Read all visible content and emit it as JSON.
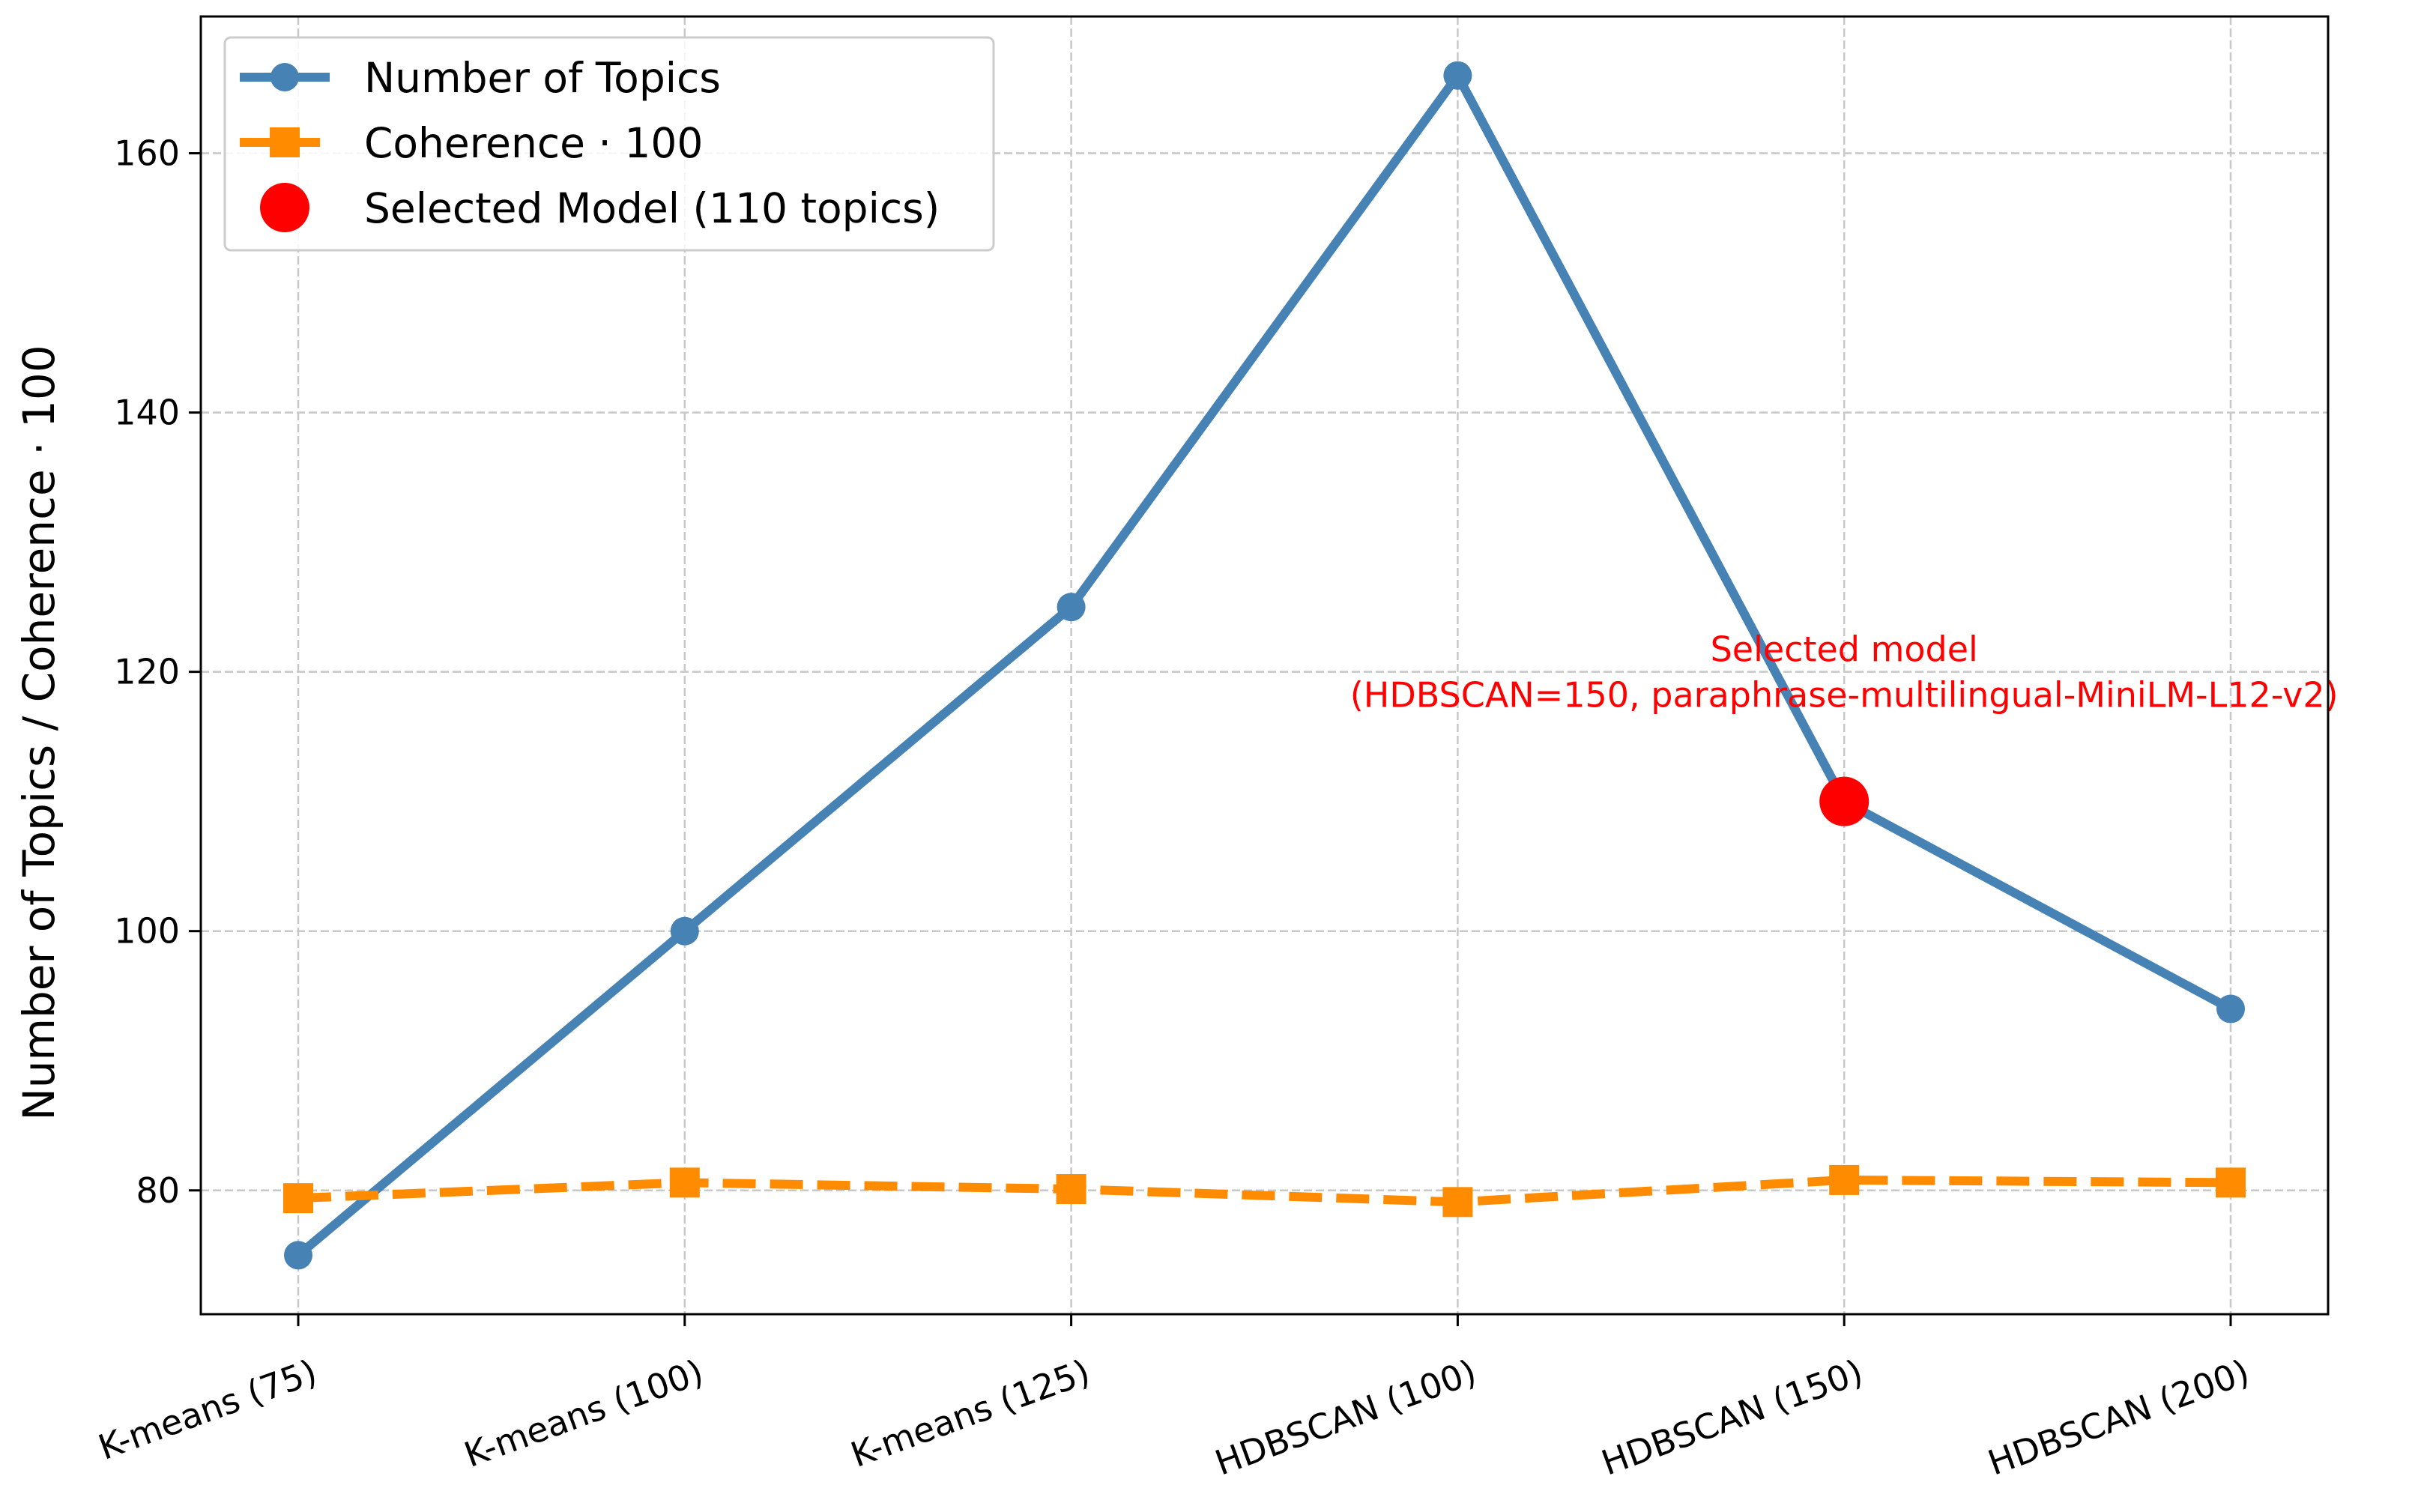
{
  "chart_data": {
    "type": "line",
    "categories": [
      "K-means (75)",
      "K-means (100)",
      "K-means (125)",
      "HDBSCAN (100)",
      "HDBSCAN (150)",
      "HDBSCAN (200)"
    ],
    "series": [
      {
        "name": "Number of Topics",
        "values": [
          75,
          100,
          125,
          166,
          110,
          94
        ],
        "color": "#4682b4",
        "marker": "circle",
        "line_style": "solid"
      },
      {
        "name": "Coherence · 100",
        "values": [
          79.4,
          80.6,
          80.1,
          79.1,
          80.8,
          80.6
        ],
        "color": "#ff8c00",
        "marker": "square",
        "line_style": "dashed"
      }
    ],
    "highlight": {
      "name": "Selected Model (110 topics)",
      "category": "HDBSCAN (150)",
      "value": 110,
      "color": "#ff0000"
    },
    "annotation": {
      "lines": [
        "Selected model",
        "(HDBSCAN=150, paraphrase-multilingual-MiniLM-L12-v2)"
      ],
      "color": "#ff0000",
      "category": "HDBSCAN (150)",
      "value": 120
    },
    "title": "",
    "xlabel": "",
    "ylabel": "Number of Topics / Coherence · 100",
    "ylim": [
      70.45,
      170.55
    ],
    "yticks": [
      80,
      100,
      120,
      140,
      160
    ],
    "grid": true,
    "legend_position": "upper-left"
  }
}
